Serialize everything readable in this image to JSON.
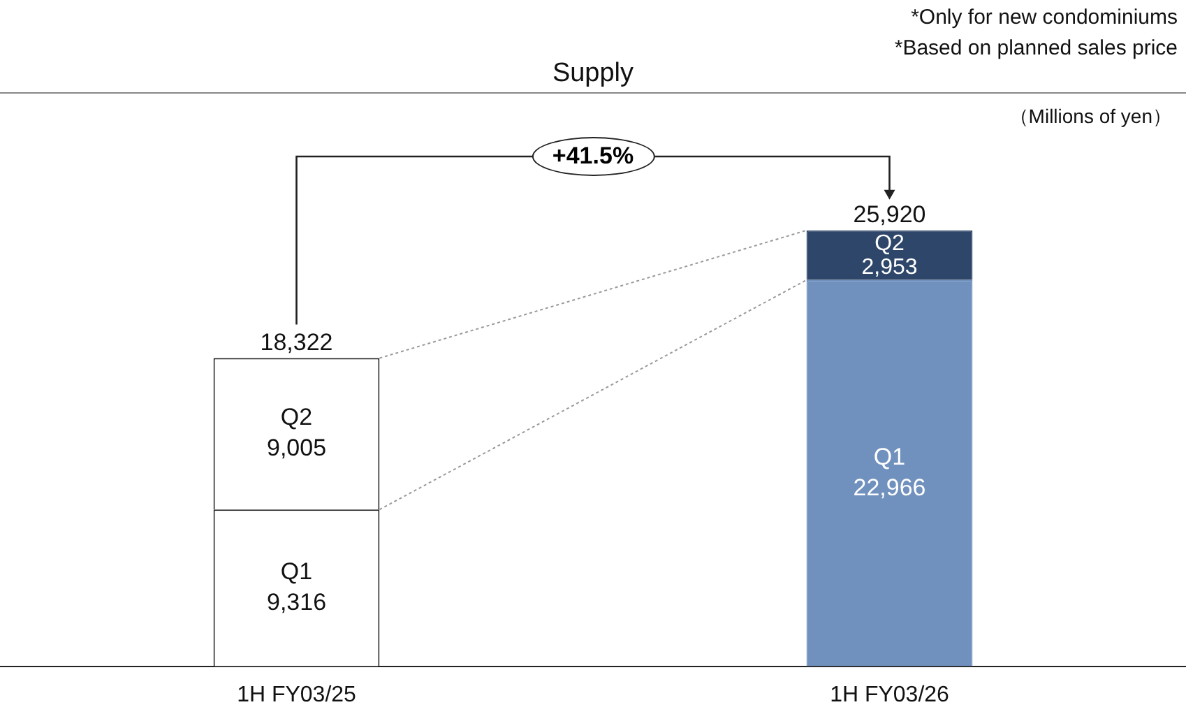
{
  "chart_data": {
    "type": "bar",
    "title": "Supply",
    "stacked": true,
    "legend": false,
    "grid": false,
    "categories": [
      "1H FY03/25",
      "1H FY03/26"
    ],
    "series": [
      {
        "name": "Q1",
        "colors": [
          "#ffffff",
          "#7090bd"
        ],
        "values": [
          9316,
          22966
        ],
        "value_labels": [
          "9,316",
          "22,966"
        ]
      },
      {
        "name": "Q2",
        "colors": [
          "#ffffff",
          "#2d4669"
        ],
        "values": [
          9005,
          2953
        ],
        "value_labels": [
          "9,005",
          "2,953"
        ]
      }
    ],
    "totals": [
      "18,322",
      "25,920"
    ],
    "annotations": [
      "*Only for new condominiums",
      "*Based on planned sales price",
      "（Millions of yen）",
      "+41.5%"
    ]
  }
}
